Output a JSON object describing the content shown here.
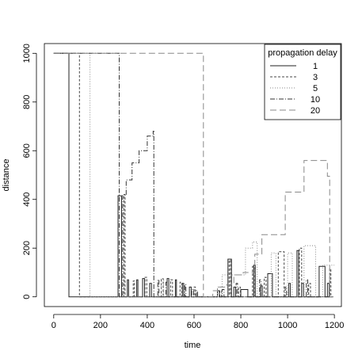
{
  "chart_data": {
    "type": "line",
    "xlabel": "time",
    "ylabel": "distance",
    "xlim": [
      -40,
      1230
    ],
    "ylim": [
      -40,
      1040
    ],
    "x_ticks": [
      "0",
      "200",
      "400",
      "600",
      "800",
      "1000",
      "1200"
    ],
    "y_ticks": [
      "0",
      "200",
      "400",
      "600",
      "800",
      "1000"
    ],
    "legend": {
      "title": "propagation delay",
      "placement": "top-right"
    },
    "series": [
      {
        "name": "1",
        "dash": "",
        "color": "#222222",
        "points": [
          [
            0,
            1000
          ],
          [
            65,
            1000
          ],
          [
            65,
            0
          ],
          [
            275,
            0
          ],
          [
            275,
            415
          ],
          [
            290,
            415
          ],
          [
            290,
            0
          ],
          [
            315,
            0
          ],
          [
            315,
            70
          ],
          [
            320,
            70
          ],
          [
            320,
            0
          ],
          [
            355,
            0
          ],
          [
            355,
            70
          ],
          [
            360,
            70
          ],
          [
            360,
            0
          ],
          [
            380,
            0
          ],
          [
            380,
            75
          ],
          [
            388,
            75
          ],
          [
            388,
            0
          ],
          [
            410,
            0
          ],
          [
            410,
            55
          ],
          [
            418,
            55
          ],
          [
            418,
            0
          ],
          [
            485,
            0
          ],
          [
            485,
            75
          ],
          [
            492,
            75
          ],
          [
            492,
            0
          ],
          [
            520,
            0
          ],
          [
            520,
            70
          ],
          [
            525,
            70
          ],
          [
            525,
            0
          ],
          [
            550,
            0
          ],
          [
            550,
            55
          ],
          [
            556,
            55
          ],
          [
            556,
            0
          ],
          [
            580,
            0
          ],
          [
            580,
            40
          ],
          [
            588,
            40
          ],
          [
            588,
            0
          ],
          [
            700,
            0
          ],
          [
            700,
            25
          ],
          [
            708,
            25
          ],
          [
            708,
            0
          ],
          [
            745,
            0
          ],
          [
            745,
            155
          ],
          [
            760,
            155
          ],
          [
            760,
            0
          ],
          [
            770,
            0
          ],
          [
            770,
            40
          ],
          [
            778,
            40
          ],
          [
            778,
            0
          ],
          [
            800,
            0
          ],
          [
            800,
            30
          ],
          [
            830,
            30
          ],
          [
            830,
            0
          ],
          [
            855,
            0
          ],
          [
            855,
            130
          ],
          [
            862,
            130
          ],
          [
            862,
            0
          ],
          [
            885,
            0
          ],
          [
            885,
            45
          ],
          [
            892,
            45
          ],
          [
            892,
            0
          ],
          [
            915,
            0
          ],
          [
            915,
            95
          ],
          [
            935,
            95
          ],
          [
            935,
            0
          ],
          [
            1005,
            0
          ],
          [
            1005,
            55
          ],
          [
            1012,
            55
          ],
          [
            1012,
            0
          ],
          [
            1040,
            0
          ],
          [
            1040,
            190
          ],
          [
            1047,
            190
          ],
          [
            1047,
            0
          ],
          [
            1060,
            0
          ],
          [
            1060,
            55
          ],
          [
            1068,
            55
          ],
          [
            1068,
            0
          ],
          [
            1135,
            0
          ],
          [
            1135,
            125
          ],
          [
            1160,
            125
          ],
          [
            1160,
            0
          ],
          [
            1170,
            0
          ],
          [
            1170,
            55
          ],
          [
            1178,
            55
          ],
          [
            1178,
            0
          ],
          [
            1195,
            0
          ]
        ]
      },
      {
        "name": "3",
        "dash": "3,2",
        "color": "#444444",
        "points": [
          [
            0,
            1000
          ],
          [
            110,
            1000
          ],
          [
            110,
            0
          ],
          [
            300,
            0
          ],
          [
            300,
            420
          ],
          [
            305,
            420
          ],
          [
            305,
            0
          ],
          [
            340,
            0
          ],
          [
            340,
            65
          ],
          [
            345,
            65
          ],
          [
            345,
            0
          ],
          [
            390,
            0
          ],
          [
            390,
            80
          ],
          [
            398,
            80
          ],
          [
            398,
            0
          ],
          [
            460,
            0
          ],
          [
            460,
            75
          ],
          [
            468,
            75
          ],
          [
            468,
            0
          ],
          [
            500,
            0
          ],
          [
            500,
            70
          ],
          [
            508,
            70
          ],
          [
            508,
            0
          ],
          [
            540,
            0
          ],
          [
            540,
            60
          ],
          [
            548,
            60
          ],
          [
            548,
            0
          ],
          [
            600,
            0
          ],
          [
            600,
            40
          ],
          [
            606,
            40
          ],
          [
            606,
            0
          ],
          [
            710,
            0
          ],
          [
            710,
            25
          ],
          [
            718,
            25
          ],
          [
            718,
            0
          ],
          [
            750,
            0
          ],
          [
            750,
            150
          ],
          [
            756,
            150
          ],
          [
            756,
            0
          ],
          [
            790,
            0
          ],
          [
            790,
            40
          ],
          [
            798,
            40
          ],
          [
            798,
            0
          ],
          [
            850,
            0
          ],
          [
            850,
            125
          ],
          [
            857,
            125
          ],
          [
            857,
            0
          ],
          [
            900,
            0
          ],
          [
            900,
            80
          ],
          [
            908,
            80
          ],
          [
            908,
            0
          ],
          [
            960,
            0
          ],
          [
            960,
            185
          ],
          [
            985,
            185
          ],
          [
            985,
            0
          ],
          [
            1050,
            0
          ],
          [
            1050,
            200
          ],
          [
            1060,
            200
          ],
          [
            1060,
            0
          ],
          [
            1090,
            0
          ],
          [
            1090,
            55
          ],
          [
            1098,
            55
          ],
          [
            1098,
            0
          ],
          [
            1180,
            0
          ],
          [
            1180,
            115
          ],
          [
            1185,
            115
          ],
          [
            1185,
            0
          ]
        ]
      },
      {
        "name": "5",
        "dash": "1,2",
        "color": "#888888",
        "points": [
          [
            0,
            1000
          ],
          [
            155,
            1000
          ],
          [
            155,
            0
          ],
          [
            460,
            0
          ],
          [
            460,
            75
          ],
          [
            470,
            75
          ],
          [
            470,
            0
          ],
          [
            700,
            0
          ],
          [
            700,
            40
          ],
          [
            720,
            40
          ],
          [
            720,
            90
          ],
          [
            820,
            90
          ],
          [
            820,
            200
          ],
          [
            850,
            200
          ],
          [
            850,
            225
          ],
          [
            870,
            225
          ],
          [
            870,
            0
          ],
          [
            930,
            0
          ],
          [
            930,
            180
          ],
          [
            950,
            180
          ],
          [
            950,
            0
          ],
          [
            1000,
            0
          ],
          [
            1000,
            180
          ],
          [
            1020,
            180
          ],
          [
            1020,
            0
          ],
          [
            1070,
            0
          ],
          [
            1070,
            210
          ],
          [
            1120,
            210
          ],
          [
            1120,
            0
          ],
          [
            1150,
            0
          ],
          [
            1150,
            130
          ],
          [
            1200,
            130
          ]
        ]
      },
      {
        "name": "10",
        "dash": "6,2,1,2",
        "color": "#333333",
        "points": [
          [
            0,
            1000
          ],
          [
            280,
            1000
          ],
          [
            280,
            0
          ],
          [
            295,
            0
          ],
          [
            295,
            420
          ],
          [
            310,
            420
          ],
          [
            310,
            480
          ],
          [
            335,
            480
          ],
          [
            335,
            550
          ],
          [
            365,
            550
          ],
          [
            365,
            600
          ],
          [
            400,
            600
          ],
          [
            400,
            660
          ],
          [
            425,
            660
          ],
          [
            425,
            680
          ],
          [
            428,
            680
          ],
          [
            428,
            0
          ],
          [
            445,
            0
          ],
          [
            445,
            70
          ],
          [
            450,
            70
          ],
          [
            450,
            0
          ],
          [
            480,
            0
          ],
          [
            480,
            60
          ],
          [
            485,
            60
          ],
          [
            485,
            0
          ],
          [
            560,
            0
          ],
          [
            560,
            50
          ],
          [
            565,
            50
          ],
          [
            565,
            0
          ],
          [
            590,
            0
          ],
          [
            590,
            30
          ],
          [
            598,
            30
          ],
          [
            598,
            0
          ],
          [
            610,
            0
          ],
          [
            610,
            25
          ],
          [
            615,
            25
          ],
          [
            615,
            0
          ],
          [
            720,
            0
          ],
          [
            720,
            30
          ],
          [
            728,
            30
          ],
          [
            728,
            0
          ],
          [
            780,
            0
          ],
          [
            780,
            55
          ],
          [
            786,
            55
          ],
          [
            786,
            0
          ],
          [
            880,
            0
          ],
          [
            880,
            70
          ],
          [
            886,
            70
          ],
          [
            886,
            0
          ],
          [
            990,
            0
          ],
          [
            990,
            40
          ],
          [
            996,
            40
          ],
          [
            996,
            0
          ],
          [
            1080,
            0
          ],
          [
            1080,
            70
          ],
          [
            1086,
            70
          ],
          [
            1086,
            0
          ],
          [
            1190,
            0
          ]
        ]
      },
      {
        "name": "20",
        "dash": "8,4",
        "color": "#888888",
        "points": [
          [
            0,
            1000
          ],
          [
            640,
            1000
          ],
          [
            640,
            0
          ],
          [
            680,
            0
          ],
          [
            680,
            25
          ],
          [
            700,
            25
          ],
          [
            700,
            40
          ],
          [
            740,
            40
          ],
          [
            740,
            50
          ],
          [
            770,
            50
          ],
          [
            770,
            90
          ],
          [
            810,
            90
          ],
          [
            810,
            100
          ],
          [
            860,
            100
          ],
          [
            860,
            175
          ],
          [
            890,
            175
          ],
          [
            890,
            255
          ],
          [
            990,
            255
          ],
          [
            990,
            430
          ],
          [
            1070,
            430
          ],
          [
            1070,
            560
          ],
          [
            1170,
            560
          ],
          [
            1170,
            495
          ],
          [
            1180,
            495
          ],
          [
            1180,
            0
          ],
          [
            1200,
            0
          ]
        ]
      }
    ]
  }
}
